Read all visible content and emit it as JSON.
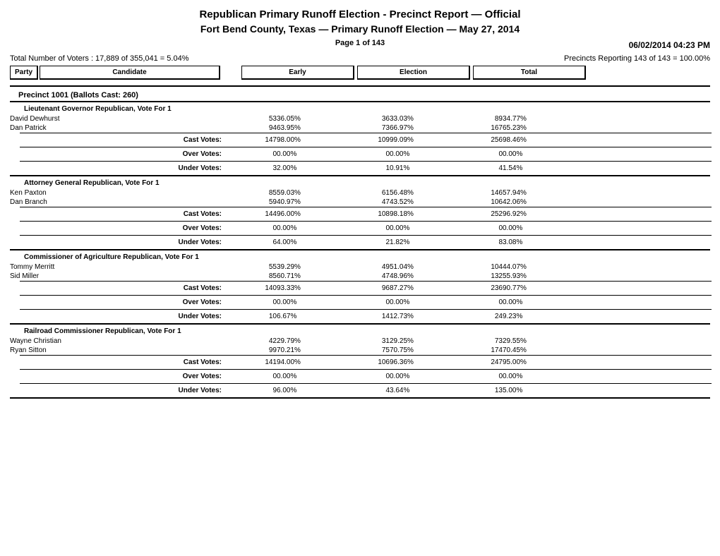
{
  "header": {
    "title1": "Republican Primary Runoff Election - Precinct Report  —  Official",
    "title2": "Fort Bend County, Texas  —  Primary Runoff Election  —  May 27, 2014",
    "page": "Page 1 of 143",
    "timestamp": "06/02/2014 04:23 PM",
    "voters_line": "Total Number of Voters : 17,889 of 355,041 = 5.04%",
    "precincts_line": "Precincts Reporting 143 of 143 = 100.00%"
  },
  "columns": {
    "party": "Party",
    "candidate": "Candidate",
    "early": "Early",
    "election": "Election",
    "total": "Total"
  },
  "precinct": {
    "title": "Precinct 1001  (Ballots Cast: 260)"
  },
  "labels": {
    "cast": "Cast Votes:",
    "over": "Over Votes:",
    "under": "Under Votes:"
  },
  "races": [
    {
      "title": "Lieutenant Governor  Republican, Vote For 1",
      "candidates": [
        {
          "name": "David Dewhurst",
          "early_n": "53",
          "early_p": "36.05%",
          "elec_n": "36",
          "elec_p": "33.03%",
          "tot_n": "89",
          "tot_p": "34.77%"
        },
        {
          "name": "Dan Patrick",
          "early_n": "94",
          "early_p": "63.95%",
          "elec_n": "73",
          "elec_p": "66.97%",
          "tot_n": "167",
          "tot_p": "65.23%"
        }
      ],
      "cast": {
        "early_n": "147",
        "early_p": "98.00%",
        "elec_n": "109",
        "elec_p": "99.09%",
        "tot_n": "256",
        "tot_p": "98.46%"
      },
      "over": {
        "early_n": "0",
        "early_p": "0.00%",
        "elec_n": "0",
        "elec_p": "0.00%",
        "tot_n": "0",
        "tot_p": "0.00%"
      },
      "under": {
        "early_n": "3",
        "early_p": "2.00%",
        "elec_n": "1",
        "elec_p": "0.91%",
        "tot_n": "4",
        "tot_p": "1.54%"
      }
    },
    {
      "title": "Attorney General  Republican, Vote For 1",
      "candidates": [
        {
          "name": "Ken Paxton",
          "early_n": "85",
          "early_p": "59.03%",
          "elec_n": "61",
          "elec_p": "56.48%",
          "tot_n": "146",
          "tot_p": "57.94%"
        },
        {
          "name": "Dan Branch",
          "early_n": "59",
          "early_p": "40.97%",
          "elec_n": "47",
          "elec_p": "43.52%",
          "tot_n": "106",
          "tot_p": "42.06%"
        }
      ],
      "cast": {
        "early_n": "144",
        "early_p": "96.00%",
        "elec_n": "108",
        "elec_p": "98.18%",
        "tot_n": "252",
        "tot_p": "96.92%"
      },
      "over": {
        "early_n": "0",
        "early_p": "0.00%",
        "elec_n": "0",
        "elec_p": "0.00%",
        "tot_n": "0",
        "tot_p": "0.00%"
      },
      "under": {
        "early_n": "6",
        "early_p": "4.00%",
        "elec_n": "2",
        "elec_p": "1.82%",
        "tot_n": "8",
        "tot_p": "3.08%"
      }
    },
    {
      "title": "Commissioner of Agriculture  Republican, Vote For 1",
      "candidates": [
        {
          "name": "Tommy Merritt",
          "early_n": "55",
          "early_p": "39.29%",
          "elec_n": "49",
          "elec_p": "51.04%",
          "tot_n": "104",
          "tot_p": "44.07%"
        },
        {
          "name": "Sid Miller",
          "early_n": "85",
          "early_p": "60.71%",
          "elec_n": "47",
          "elec_p": "48.96%",
          "tot_n": "132",
          "tot_p": "55.93%"
        }
      ],
      "cast": {
        "early_n": "140",
        "early_p": "93.33%",
        "elec_n": "96",
        "elec_p": "87.27%",
        "tot_n": "236",
        "tot_p": "90.77%"
      },
      "over": {
        "early_n": "0",
        "early_p": "0.00%",
        "elec_n": "0",
        "elec_p": "0.00%",
        "tot_n": "0",
        "tot_p": "0.00%"
      },
      "under": {
        "early_n": "10",
        "early_p": "6.67%",
        "elec_n": "14",
        "elec_p": "12.73%",
        "tot_n": "24",
        "tot_p": "9.23%"
      }
    },
    {
      "title": "Railroad Commissioner  Republican, Vote For 1",
      "candidates": [
        {
          "name": "Wayne Christian",
          "early_n": "42",
          "early_p": "29.79%",
          "elec_n": "31",
          "elec_p": "29.25%",
          "tot_n": "73",
          "tot_p": "29.55%"
        },
        {
          "name": "Ryan Sitton",
          "early_n": "99",
          "early_p": "70.21%",
          "elec_n": "75",
          "elec_p": "70.75%",
          "tot_n": "174",
          "tot_p": "70.45%"
        }
      ],
      "cast": {
        "early_n": "141",
        "early_p": "94.00%",
        "elec_n": "106",
        "elec_p": "96.36%",
        "tot_n": "247",
        "tot_p": "95.00%"
      },
      "over": {
        "early_n": "0",
        "early_p": "0.00%",
        "elec_n": "0",
        "elec_p": "0.00%",
        "tot_n": "0",
        "tot_p": "0.00%"
      },
      "under": {
        "early_n": "9",
        "early_p": "6.00%",
        "elec_n": "4",
        "elec_p": "3.64%",
        "tot_n": "13",
        "tot_p": "5.00%"
      }
    }
  ]
}
